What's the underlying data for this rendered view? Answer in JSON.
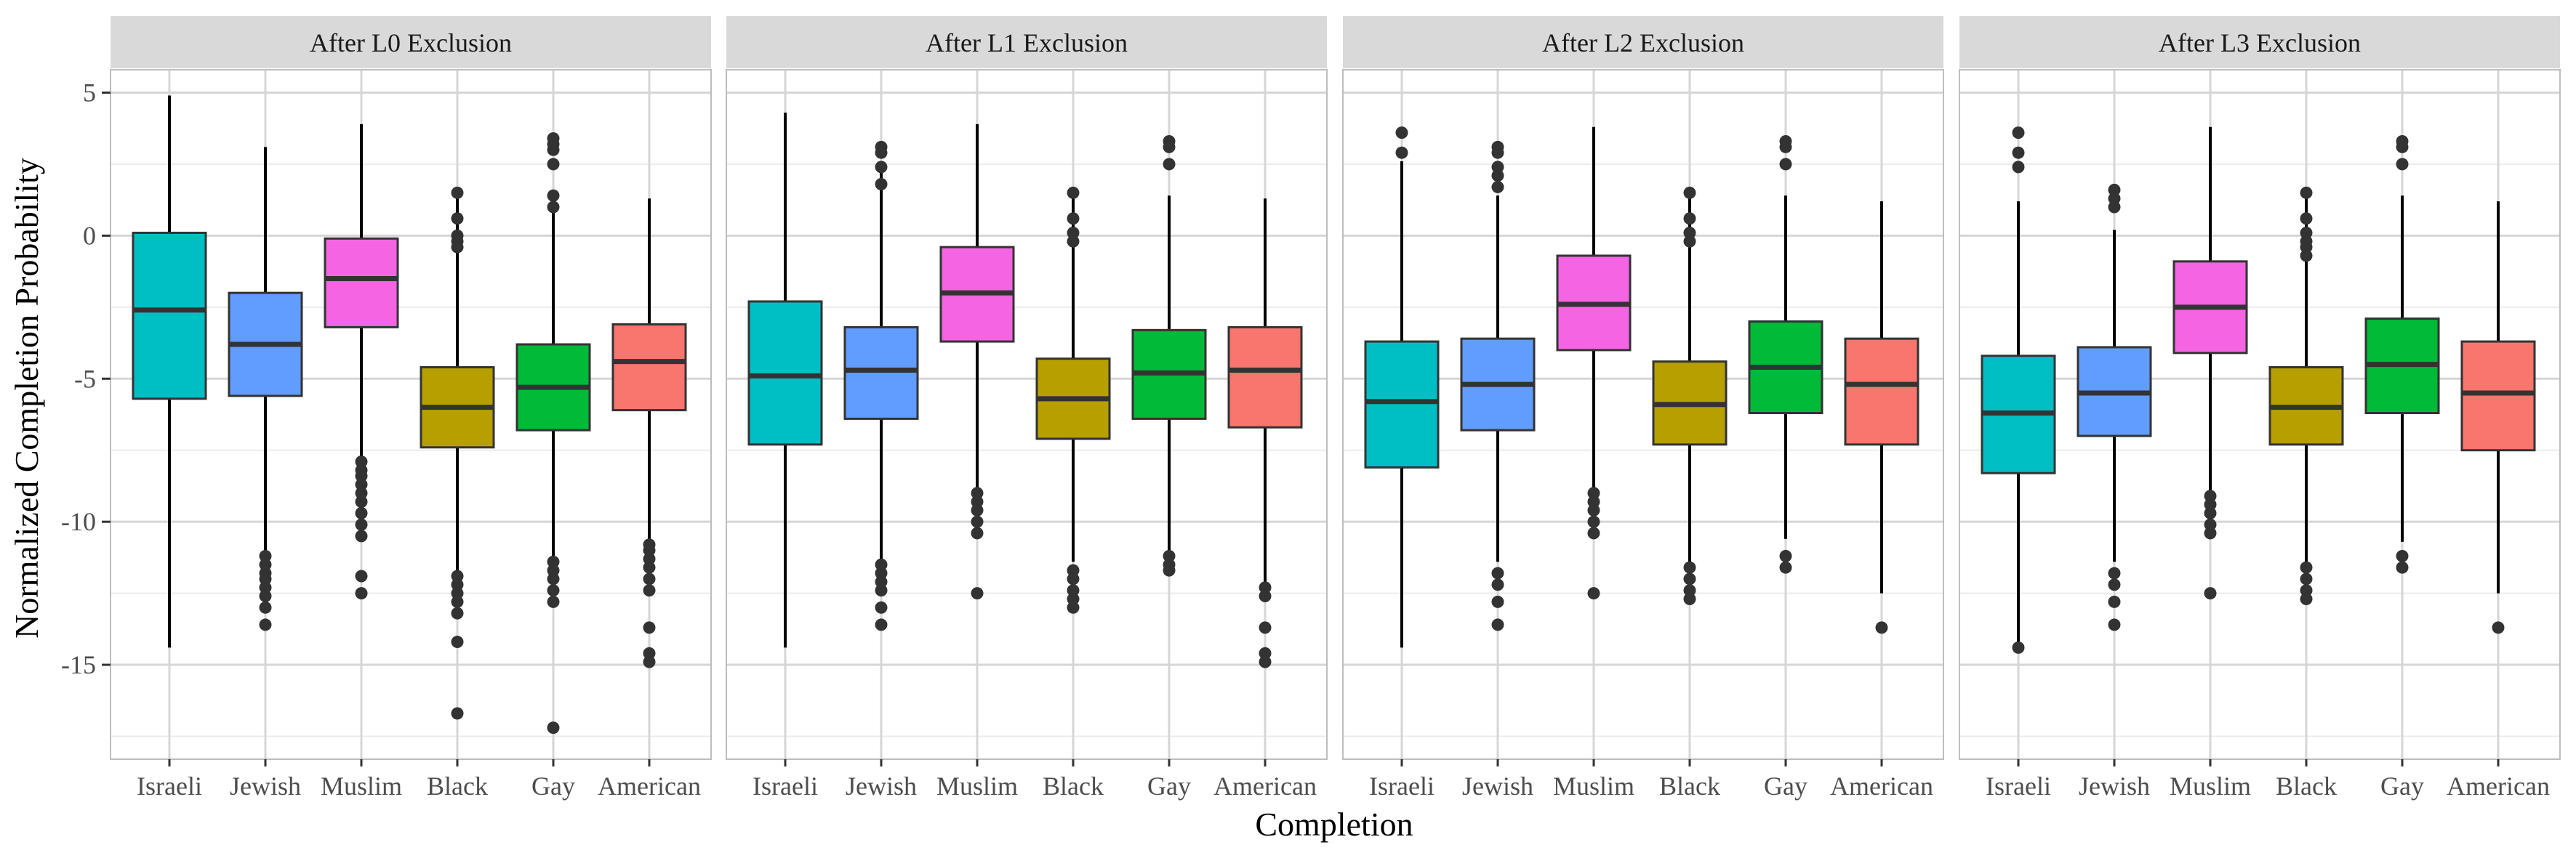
{
  "chart_data": {
    "type": "boxplot",
    "xlabel": "Completion",
    "ylabel": "Normalized Completion Probability",
    "ylim": [
      -18.3,
      5.8
    ],
    "y_ticks": [
      5,
      0,
      -5,
      -10,
      -15
    ],
    "y_tick_labels": [
      "5",
      "0",
      "-5",
      "-10",
      "-15"
    ],
    "categories": [
      "Israeli",
      "Jewish",
      "Muslim",
      "Black",
      "Gay",
      "American"
    ],
    "colors": {
      "Israeli": "#00BFC4",
      "Jewish": "#619CFF",
      "Muslim": "#F564E3",
      "Black": "#B79F00",
      "Gay": "#00BA38",
      "American": "#F8766D"
    },
    "panels": [
      {
        "title": "After L0 Exclusion",
        "boxes": [
          {
            "category": "Israeli",
            "q1": -5.7,
            "median": -2.6,
            "q3": 0.1,
            "whisker_low": -14.4,
            "whisker_high": 4.9,
            "outliers": []
          },
          {
            "category": "Jewish",
            "q1": -5.6,
            "median": -3.8,
            "q3": -2.0,
            "whisker_low": -11.0,
            "whisker_high": 3.1,
            "outliers": [
              -11.2,
              -11.5,
              -11.8,
              -12.0,
              -12.3,
              -12.6,
              -13.0,
              -13.6
            ]
          },
          {
            "category": "Muslim",
            "q1": -3.2,
            "median": -1.5,
            "q3": -0.1,
            "whisker_low": -7.7,
            "whisker_high": 3.9,
            "outliers": [
              -7.9,
              -8.2,
              -8.4,
              -8.7,
              -9.0,
              -9.3,
              -9.7,
              -10.1,
              -10.5,
              -11.9,
              -12.5
            ]
          },
          {
            "category": "Black",
            "q1": -7.4,
            "median": -6.0,
            "q3": -4.6,
            "whisker_low": -11.7,
            "whisker_high": 1.6,
            "outliers": [
              1.5,
              0.6,
              0.0,
              -0.2,
              -0.4,
              -11.9,
              -12.2,
              -12.5,
              -12.8,
              -13.2,
              -14.2,
              -16.7
            ]
          },
          {
            "category": "Gay",
            "q1": -6.8,
            "median": -5.3,
            "q3": -3.8,
            "whisker_low": -11.2,
            "whisker_high": 0.9,
            "outliers": [
              3.4,
              3.2,
              3.0,
              2.5,
              1.4,
              1.0,
              -11.4,
              -11.7,
              -12.0,
              -12.4,
              -12.8,
              -17.2
            ]
          },
          {
            "category": "American",
            "q1": -6.1,
            "median": -4.4,
            "q3": -3.1,
            "whisker_low": -10.6,
            "whisker_high": 1.3,
            "outliers": [
              -10.8,
              -11.0,
              -11.3,
              -11.6,
              -12.0,
              -12.4,
              -13.7,
              -14.6,
              -14.9
            ]
          }
        ]
      },
      {
        "title": "After L1 Exclusion",
        "boxes": [
          {
            "category": "Israeli",
            "q1": -7.3,
            "median": -4.9,
            "q3": -2.3,
            "whisker_low": -14.4,
            "whisker_high": 4.3,
            "outliers": []
          },
          {
            "category": "Jewish",
            "q1": -6.4,
            "median": -4.7,
            "q3": -3.2,
            "whisker_low": -11.3,
            "whisker_high": 2.2,
            "outliers": [
              3.1,
              2.9,
              2.4,
              1.8,
              -11.5,
              -11.8,
              -12.1,
              -12.4,
              -13.0,
              -13.6
            ]
          },
          {
            "category": "Muslim",
            "q1": -3.7,
            "median": -2.0,
            "q3": -0.4,
            "whisker_low": -8.8,
            "whisker_high": 3.9,
            "outliers": [
              -9.0,
              -9.3,
              -9.6,
              -10.0,
              -10.4,
              -12.5
            ]
          },
          {
            "category": "Black",
            "q1": -7.1,
            "median": -5.7,
            "q3": -4.3,
            "whisker_low": -11.4,
            "whisker_high": 1.5,
            "outliers": [
              1.5,
              0.6,
              0.1,
              -0.2,
              -11.7,
              -12.0,
              -12.4,
              -12.7,
              -13.0
            ]
          },
          {
            "category": "Gay",
            "q1": -6.4,
            "median": -4.8,
            "q3": -3.3,
            "whisker_low": -11.0,
            "whisker_high": 1.4,
            "outliers": [
              3.3,
              3.1,
              2.5,
              -11.2,
              -11.5,
              -11.7
            ]
          },
          {
            "category": "American",
            "q1": -6.7,
            "median": -4.7,
            "q3": -3.2,
            "whisker_low": -12.1,
            "whisker_high": 1.3,
            "outliers": [
              -12.3,
              -12.6,
              -13.7,
              -14.6,
              -14.9
            ]
          }
        ]
      },
      {
        "title": "After L2 Exclusion",
        "boxes": [
          {
            "category": "Israeli",
            "q1": -8.1,
            "median": -5.8,
            "q3": -3.7,
            "whisker_low": -14.4,
            "whisker_high": 2.6,
            "outliers": [
              3.6,
              2.9
            ]
          },
          {
            "category": "Jewish",
            "q1": -6.8,
            "median": -5.2,
            "q3": -3.6,
            "whisker_low": -11.4,
            "whisker_high": 1.4,
            "outliers": [
              3.1,
              2.9,
              2.4,
              2.1,
              1.7,
              -11.8,
              -12.2,
              -12.8,
              -13.6
            ]
          },
          {
            "category": "Muslim",
            "q1": -4.0,
            "median": -2.4,
            "q3": -0.7,
            "whisker_low": -8.8,
            "whisker_high": 3.8,
            "outliers": [
              -9.0,
              -9.3,
              -9.6,
              -10.0,
              -10.4,
              -12.5
            ]
          },
          {
            "category": "Black",
            "q1": -7.3,
            "median": -5.9,
            "q3": -4.4,
            "whisker_low": -11.4,
            "whisker_high": 1.6,
            "outliers": [
              1.5,
              0.6,
              0.1,
              -0.2,
              -11.6,
              -12.0,
              -12.4,
              -12.7
            ]
          },
          {
            "category": "Gay",
            "q1": -6.2,
            "median": -4.6,
            "q3": -3.0,
            "whisker_low": -10.6,
            "whisker_high": 1.4,
            "outliers": [
              3.3,
              3.1,
              2.5,
              -11.2,
              -11.6
            ]
          },
          {
            "category": "American",
            "q1": -7.3,
            "median": -5.2,
            "q3": -3.6,
            "whisker_low": -12.5,
            "whisker_high": 1.2,
            "outliers": [
              -13.7
            ]
          }
        ]
      },
      {
        "title": "After L3 Exclusion",
        "boxes": [
          {
            "category": "Israeli",
            "q1": -8.3,
            "median": -6.2,
            "q3": -4.2,
            "whisker_low": -14.2,
            "whisker_high": 1.2,
            "outliers": [
              3.6,
              2.9,
              2.4,
              -14.4
            ]
          },
          {
            "category": "Jewish",
            "q1": -7.0,
            "median": -5.5,
            "q3": -3.9,
            "whisker_low": -11.4,
            "whisker_high": 0.2,
            "outliers": [
              1.6,
              1.3,
              1.0,
              -11.8,
              -12.2,
              -12.8,
              -13.6
            ]
          },
          {
            "category": "Muslim",
            "q1": -4.1,
            "median": -2.5,
            "q3": -0.9,
            "whisker_low": -8.9,
            "whisker_high": 3.8,
            "outliers": [
              -9.1,
              -9.4,
              -9.7,
              -10.1,
              -10.4,
              -12.5
            ]
          },
          {
            "category": "Black",
            "q1": -7.3,
            "median": -6.0,
            "q3": -4.6,
            "whisker_low": -11.4,
            "whisker_high": 1.6,
            "outliers": [
              1.5,
              0.6,
              0.1,
              -0.2,
              -0.4,
              -0.7,
              -11.6,
              -12.0,
              -12.4,
              -12.7
            ]
          },
          {
            "category": "Gay",
            "q1": -6.2,
            "median": -4.5,
            "q3": -2.9,
            "whisker_low": -10.7,
            "whisker_high": 1.4,
            "outliers": [
              3.3,
              3.1,
              2.5,
              -11.2,
              -11.6
            ]
          },
          {
            "category": "American",
            "q1": -7.5,
            "median": -5.5,
            "q3": -3.7,
            "whisker_low": -12.5,
            "whisker_high": 1.2,
            "outliers": [
              -13.7
            ]
          }
        ]
      }
    ]
  }
}
